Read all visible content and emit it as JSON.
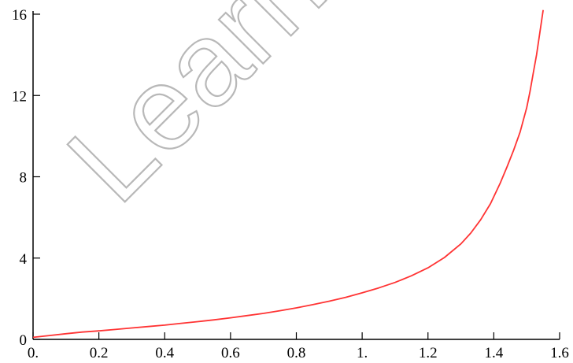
{
  "watermark": {
    "text": "Learn"
  },
  "chart_data": {
    "type": "line",
    "title": "",
    "xlabel": "",
    "ylabel": "",
    "xlim": [
      0,
      1.6
    ],
    "ylim": [
      0,
      16
    ],
    "grid": false,
    "x_ticks": [
      0,
      0.2,
      0.4,
      0.6,
      0.8,
      1.0,
      1.2,
      1.4,
      1.6
    ],
    "x_tick_labels": [
      "0.",
      "0.2",
      "0.4",
      "0.6",
      "0.8",
      "1.",
      "1.2",
      "1.4",
      "1.6"
    ],
    "y_ticks": [
      0,
      4,
      8,
      12,
      16
    ],
    "y_tick_labels": [
      "0",
      "4",
      "8",
      "12",
      "16"
    ],
    "series": [
      {
        "color": "#ff3333",
        "x": [
          0,
          0.05,
          0.1,
          0.15,
          0.2,
          0.25,
          0.3,
          0.35,
          0.4,
          0.45,
          0.5,
          0.55,
          0.6,
          0.65,
          0.7,
          0.75,
          0.8,
          0.85,
          0.9,
          0.95,
          1.0,
          1.05,
          1.1,
          1.15,
          1.2,
          1.25,
          1.3,
          1.33,
          1.36,
          1.39,
          1.42,
          1.44,
          1.46,
          1.48,
          1.5,
          1.51,
          1.52,
          1.53,
          1.54,
          1.55
        ],
        "values": [
          0.1,
          0.19,
          0.28,
          0.36,
          0.42,
          0.49,
          0.56,
          0.63,
          0.7,
          0.79,
          0.87,
          0.96,
          1.06,
          1.17,
          1.28,
          1.41,
          1.55,
          1.71,
          1.88,
          2.07,
          2.29,
          2.53,
          2.8,
          3.13,
          3.52,
          4.03,
          4.7,
          5.23,
          5.88,
          6.68,
          7.7,
          8.48,
          9.3,
          10.2,
          11.4,
          12.2,
          13.1,
          14.0,
          15.1,
          16.2
        ]
      }
    ]
  }
}
